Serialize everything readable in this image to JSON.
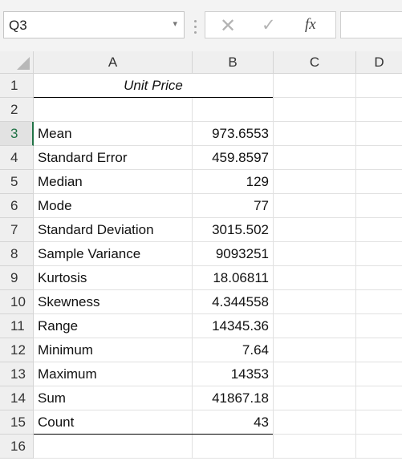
{
  "formula_bar": {
    "name_box": "Q3",
    "cancel_icon": "✕",
    "enter_icon": "✓",
    "fx_label": "fx",
    "formula_value": ""
  },
  "columns": [
    "A",
    "B",
    "C",
    "D"
  ],
  "table": {
    "title": "Unit Price",
    "rows": [
      {
        "row": "1",
        "label": "",
        "value": ""
      },
      {
        "row": "2",
        "label": "",
        "value": ""
      },
      {
        "row": "3",
        "label": "Mean",
        "value": "973.6553"
      },
      {
        "row": "4",
        "label": "Standard Error",
        "value": "459.8597"
      },
      {
        "row": "5",
        "label": "Median",
        "value": "129"
      },
      {
        "row": "6",
        "label": "Mode",
        "value": "77"
      },
      {
        "row": "7",
        "label": "Standard Deviation",
        "value": "3015.502"
      },
      {
        "row": "8",
        "label": "Sample Variance",
        "value": "9093251"
      },
      {
        "row": "9",
        "label": "Kurtosis",
        "value": "18.06811"
      },
      {
        "row": "10",
        "label": "Skewness",
        "value": "4.344558"
      },
      {
        "row": "11",
        "label": "Range",
        "value": "14345.36"
      },
      {
        "row": "12",
        "label": "Minimum",
        "value": "7.64"
      },
      {
        "row": "13",
        "label": "Maximum",
        "value": "14353"
      },
      {
        "row": "14",
        "label": "Sum",
        "value": "41867.18"
      },
      {
        "row": "15",
        "label": "Count",
        "value": "43"
      },
      {
        "row": "16",
        "label": "",
        "value": ""
      }
    ]
  },
  "selected_row": "3",
  "colors": {
    "accent": "#217346"
  }
}
